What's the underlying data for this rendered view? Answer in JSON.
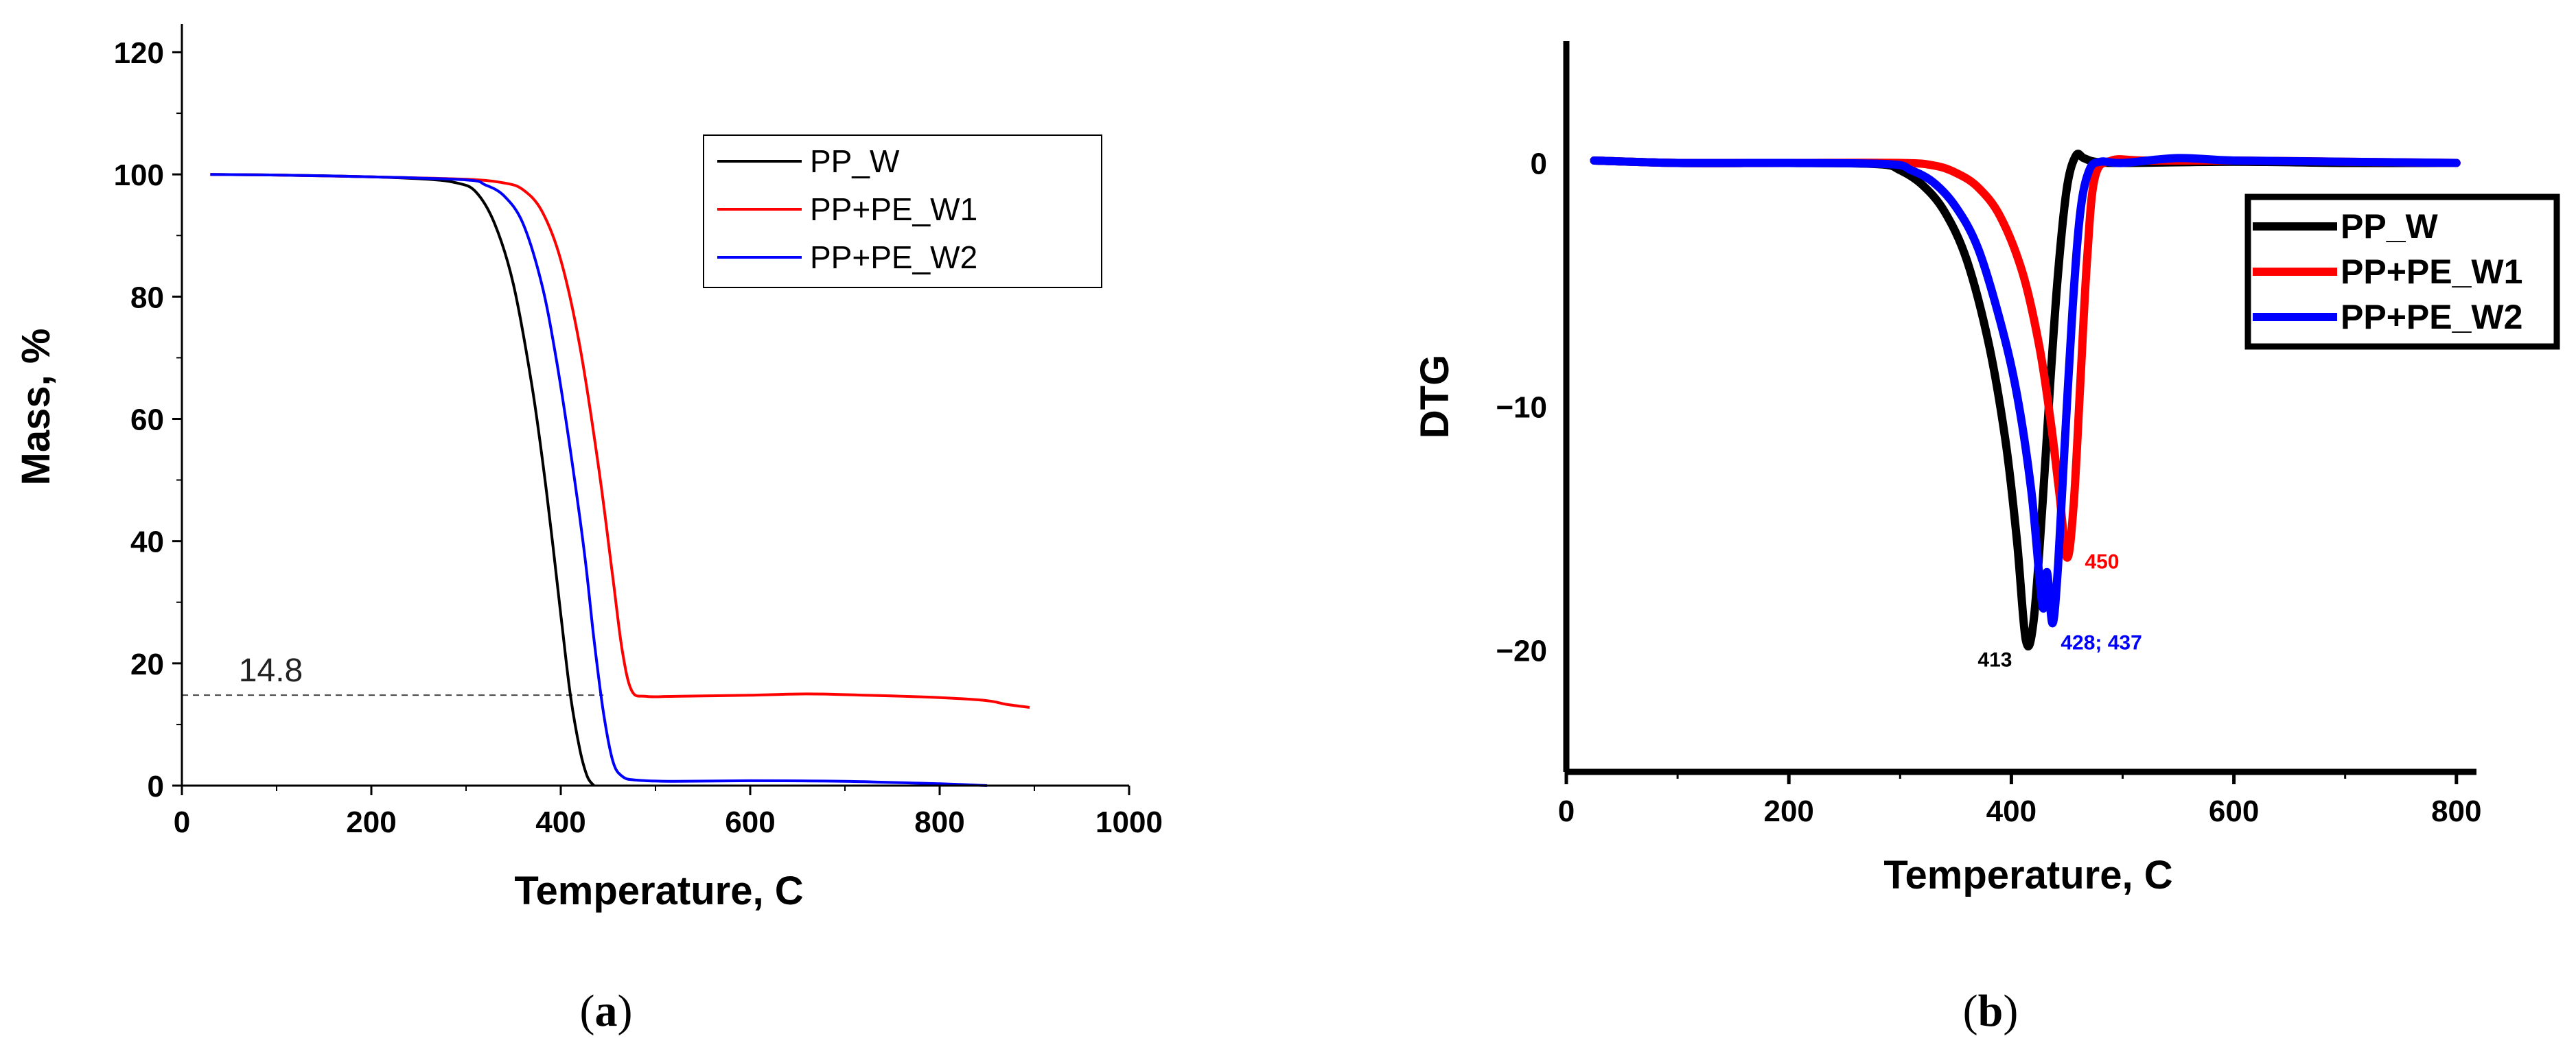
{
  "chart_data": [
    {
      "type": "line",
      "panel": "(a)",
      "caption_letter": "a",
      "xlabel": "Temperature, C",
      "ylabel": "Mass, %",
      "xlim": [
        0,
        1000
      ],
      "ylim": [
        0,
        120
      ],
      "xticks": [
        0,
        200,
        400,
        600,
        800,
        1000
      ],
      "yticks": [
        0,
        20,
        40,
        60,
        80,
        100,
        120
      ],
      "legend_position": "top-right",
      "annotation": {
        "text": "14.8",
        "y": 14.8
      },
      "series": [
        {
          "name": "PP_W",
          "color": "#000000",
          "x": [
            30,
            100,
            200,
            260,
            290,
            310,
            330,
            350,
            370,
            385,
            400,
            410,
            420,
            428,
            435
          ],
          "y": [
            100,
            99.9,
            99.6,
            99.2,
            98.6,
            97.2,
            92,
            82,
            65,
            48,
            28,
            15,
            6,
            1.5,
            0
          ]
        },
        {
          "name": "PP+PE_W1",
          "color": "#ff0000",
          "x": [
            30,
            100,
            200,
            300,
            340,
            360,
            380,
            400,
            420,
            440,
            455,
            465,
            475,
            490,
            520,
            600,
            660,
            720,
            800,
            850,
            870,
            895
          ],
          "y": [
            100,
            99.9,
            99.6,
            99.2,
            98.6,
            97.5,
            94,
            86,
            72,
            52,
            34,
            22,
            15.5,
            14.6,
            14.6,
            14.8,
            15.0,
            14.8,
            14.4,
            13.9,
            13.3,
            12.8
          ]
        },
        {
          "name": "PP+PE_W2",
          "color": "#0000ff",
          "x": [
            30,
            100,
            200,
            300,
            320,
            340,
            360,
            380,
            395,
            410,
            425,
            435,
            445,
            455,
            465,
            480,
            520,
            600,
            700,
            800,
            850
          ],
          "y": [
            100,
            99.9,
            99.6,
            99.1,
            98.3,
            96.5,
            92,
            82,
            70,
            55,
            38,
            24,
            12,
            4,
            1.5,
            0.9,
            0.7,
            0.8,
            0.7,
            0.3,
            0.0
          ]
        }
      ]
    },
    {
      "type": "line",
      "panel": "(b)",
      "caption_letter": "b",
      "xlabel": "Temperature, C",
      "ylabel": "DTG",
      "xlim": [
        0,
        810
      ],
      "ylim": [
        -25,
        5
      ],
      "xticks": [
        0,
        200,
        400,
        600,
        800
      ],
      "yticks": [
        0,
        -10,
        -20
      ],
      "ytick_labels": [
        "0",
        "−10",
        "−20"
      ],
      "legend_position": "right",
      "peak_labels": [
        {
          "text": "413",
          "x": 413,
          "y": -19.6,
          "color": "#000000"
        },
        {
          "text": "450",
          "x": 450,
          "y": -16.2,
          "color": "#ff0000"
        },
        {
          "text": "428; 437",
          "x": 437,
          "y": -18.9,
          "color": "#0000ff"
        }
      ],
      "series": [
        {
          "name": "PP_W",
          "color": "#000000",
          "x": [
            25,
            100,
            200,
            280,
            300,
            320,
            340,
            360,
            380,
            395,
            405,
            413,
            420,
            428,
            435,
            442,
            450,
            458,
            465,
            475,
            500,
            600,
            700,
            800
          ],
          "y": [
            0.1,
            0.0,
            0.0,
            -0.05,
            -0.3,
            -0.9,
            -2.0,
            -4.0,
            -7.5,
            -11.5,
            -15.5,
            -19.6,
            -18.8,
            -14.0,
            -9.0,
            -4.5,
            -1.0,
            0.3,
            0.2,
            0.05,
            0.0,
            0.05,
            0.0,
            0.0
          ]
        },
        {
          "name": "PP+PE_W1",
          "color": "#ff0000",
          "x": [
            25,
            100,
            200,
            300,
            330,
            350,
            370,
            390,
            410,
            425,
            435,
            443,
            450,
            456,
            462,
            468,
            475,
            490,
            520,
            600,
            700,
            800
          ],
          "y": [
            0.1,
            0.0,
            0.0,
            0.0,
            -0.1,
            -0.4,
            -1.0,
            -2.2,
            -4.5,
            -7.5,
            -10.5,
            -13.5,
            -16.2,
            -14.0,
            -9.0,
            -4.0,
            -0.6,
            0.1,
            0.1,
            0.1,
            0.05,
            0.0
          ]
        },
        {
          "name": "PP+PE_W2",
          "color": "#0000ff",
          "x": [
            25,
            100,
            200,
            290,
            310,
            330,
            350,
            370,
            390,
            405,
            418,
            428,
            432,
            437,
            442,
            448,
            455,
            462,
            470,
            480,
            500,
            550,
            600,
            700,
            800
          ],
          "y": [
            0.1,
            0.0,
            0.0,
            -0.05,
            -0.3,
            -0.8,
            -1.8,
            -3.5,
            -6.5,
            -9.5,
            -13.5,
            -18.2,
            -16.8,
            -18.9,
            -16.5,
            -11.5,
            -6.0,
            -2.0,
            -0.3,
            0.05,
            0.0,
            0.2,
            0.1,
            0.05,
            0.0
          ]
        }
      ]
    }
  ]
}
